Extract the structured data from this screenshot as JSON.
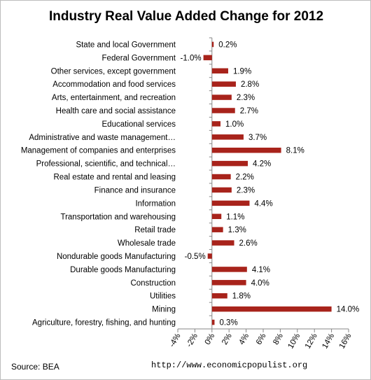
{
  "chart_data": {
    "type": "bar",
    "orientation": "horizontal",
    "title": "Industry Real Value Added Change for 2012",
    "categories": [
      "State and local Government",
      "Federal Government",
      "Other services, except government",
      "Accommodation and food services",
      "Arts, entertainment, and recreation",
      "Health care and social assistance",
      "Educational services",
      "Administrative and waste management…",
      "Management of companies and enterprises",
      "Professional, scientific, and technical…",
      "Real estate and rental and leasing",
      "Finance and insurance",
      "Information",
      "Transportation and warehousing",
      "Retail trade",
      "Wholesale trade",
      "Nondurable goods Manufacturing",
      "Durable goods Manufacturing",
      "Construction",
      "Utilities",
      "Mining",
      "Agriculture, forestry, fishing, and hunting"
    ],
    "values": [
      0.2,
      -1.0,
      1.9,
      2.8,
      2.3,
      2.7,
      1.0,
      3.7,
      8.1,
      4.2,
      2.2,
      2.3,
      4.4,
      1.1,
      1.3,
      2.6,
      -0.5,
      4.1,
      4.0,
      1.8,
      14.0,
      0.3
    ],
    "value_labels": [
      "0.2%",
      "-1.0%",
      "1.9%",
      "2.8%",
      "2.3%",
      "2.7%",
      "1.0%",
      "3.7%",
      "8.1%",
      "4.2%",
      "2.2%",
      "2.3%",
      "4.4%",
      "1.1%",
      "1.3%",
      "2.6%",
      "-0.5%",
      "4.1%",
      "4.0%",
      "1.8%",
      "14.0%",
      "0.3%"
    ],
    "xlim": [
      -4,
      16
    ],
    "x_ticks": [
      -4,
      -2,
      0,
      2,
      4,
      6,
      8,
      10,
      12,
      14,
      16
    ],
    "x_tick_labels": [
      "-4%",
      "-2%",
      "0%",
      "2%",
      "4%",
      "6%",
      "8%",
      "10%",
      "12%",
      "14%",
      "16%"
    ],
    "grid": false,
    "legend": "none",
    "bar_color": "#a8231b"
  },
  "footer": {
    "source": "Source:  BEA",
    "url": "http://www.economicpopulist.org"
  }
}
